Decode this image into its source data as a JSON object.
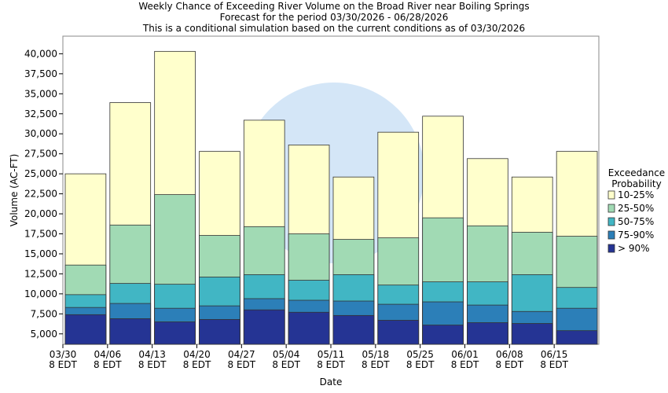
{
  "chart_data": {
    "type": "bar",
    "title": [
      "Weekly Chance of Exceeding River Volume on the Broad River near Boiling Springs",
      "Forecast for the period 03/30/2026 - 06/28/2026",
      "This is a conditional simulation based on the current conditions as of 03/30/2026"
    ],
    "y_label": "Volume (AC-FT)",
    "x_label": "Date",
    "legend_title": [
      "Exceedance",
      "Probability"
    ],
    "categories": [
      [
        "03/30",
        "8 EDT"
      ],
      [
        "04/06",
        "8 EDT"
      ],
      [
        "04/13",
        "8 EDT"
      ],
      [
        "04/20",
        "8 EDT"
      ],
      [
        "04/27",
        "8 EDT"
      ],
      [
        "05/04",
        "8 EDT"
      ],
      [
        "05/11",
        "8 EDT"
      ],
      [
        "05/18",
        "8 EDT"
      ],
      [
        "05/25",
        "8 EDT"
      ],
      [
        "06/01",
        "8 EDT"
      ],
      [
        "06/08",
        "8 EDT"
      ],
      [
        "06/15",
        "8 EDT"
      ]
    ],
    "series": [
      {
        "name": "10-25%",
        "color": "#ffffcc",
        "values": [
          25000,
          33900,
          40300,
          27800,
          31700,
          28600,
          24600,
          30200,
          32200,
          26900,
          24600,
          27800
        ]
      },
      {
        "name": "25-50%",
        "color": "#a1dab4",
        "values": [
          13600,
          18600,
          22400,
          17300,
          18400,
          17500,
          16800,
          17000,
          19500,
          18500,
          17700,
          17200
        ]
      },
      {
        "name": "50-75%",
        "color": "#41b6c4",
        "values": [
          9900,
          11300,
          11200,
          12100,
          12400,
          11700,
          12400,
          11100,
          11500,
          11500,
          12400,
          10800
        ]
      },
      {
        "name": "75-90%",
        "color": "#2c7fb8",
        "values": [
          8300,
          8800,
          8200,
          8500,
          9400,
          9200,
          9100,
          8700,
          9000,
          8600,
          7800,
          8200
        ]
      },
      {
        "name": "> 90%",
        "color": "#253494",
        "values": [
          7400,
          6900,
          6500,
          6800,
          8000,
          7700,
          7300,
          6700,
          6100,
          6400,
          6300,
          5400
        ]
      }
    ],
    "ylim": [
      3700,
      42200
    ],
    "yticks": [
      {
        "value": 5000,
        "label": "5,000"
      },
      {
        "value": 7500,
        "label": "7,500"
      },
      {
        "value": 10000,
        "label": "10,000"
      },
      {
        "value": 12500,
        "label": "12,500"
      },
      {
        "value": 15000,
        "label": "15,000"
      },
      {
        "value": 17500,
        "label": "17,500"
      },
      {
        "value": 20000,
        "label": "20,000"
      },
      {
        "value": 22500,
        "label": "22,500"
      },
      {
        "value": 25000,
        "label": "25,000"
      },
      {
        "value": 27500,
        "label": "27,500"
      },
      {
        "value": 30000,
        "label": "30,000"
      },
      {
        "value": 32500,
        "label": "32,500"
      },
      {
        "value": 35000,
        "label": "35,000"
      },
      {
        "value": 37500,
        "label": "37,500"
      },
      {
        "value": 40000,
        "label": "40,000"
      }
    ],
    "grid": false
  }
}
